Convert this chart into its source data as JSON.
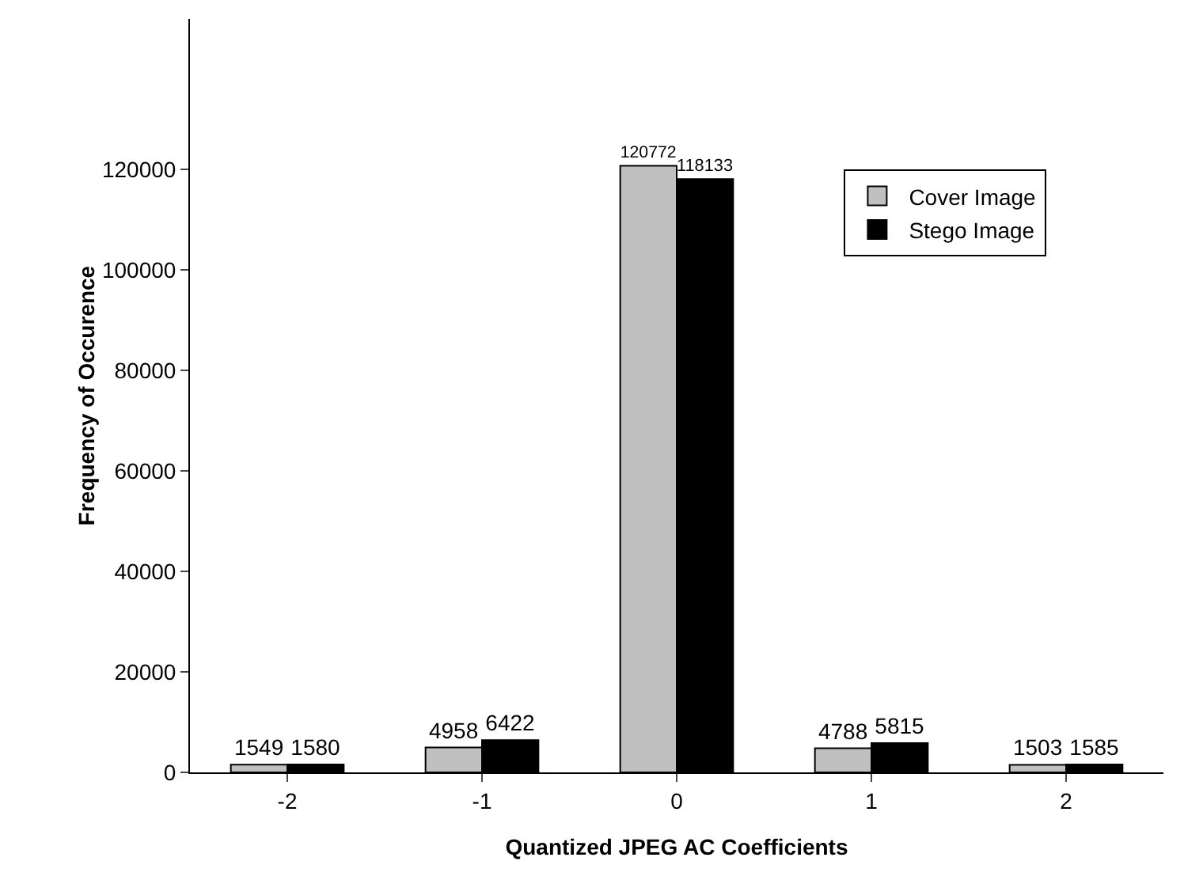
{
  "chart_data": {
    "type": "bar",
    "xlabel": "Quantized JPEG AC Coefficients",
    "ylabel": "Frequency of Occurence",
    "categories": [
      "-2",
      "-1",
      "0",
      "1",
      "2"
    ],
    "series": [
      {
        "name": "Cover Image",
        "color": "#c0c0c0",
        "values": [
          1549,
          4958,
          120772,
          4788,
          1503
        ]
      },
      {
        "name": "Stego Image",
        "color": "#000000",
        "values": [
          1580,
          6422,
          118133,
          5815,
          1585
        ]
      }
    ],
    "ylim": [
      0,
      150000
    ],
    "yticks": [
      0,
      20000,
      40000,
      60000,
      80000,
      100000,
      120000
    ],
    "data_labels": true,
    "grid": false,
    "legend": "top right"
  }
}
